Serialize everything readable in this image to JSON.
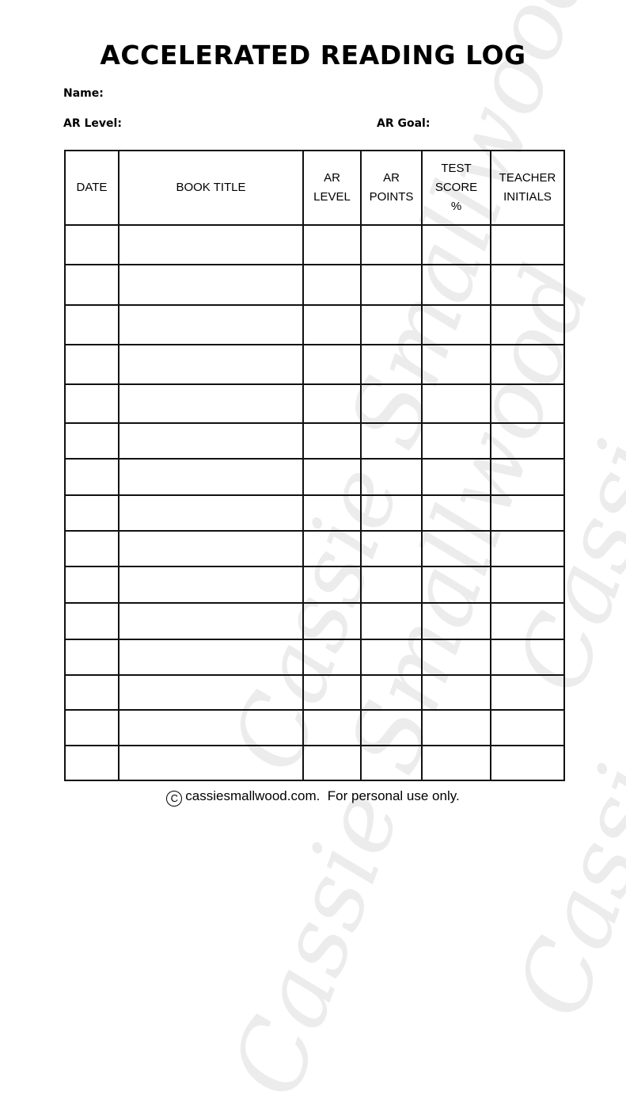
{
  "title": "ACCELERATED READING LOG",
  "fields": {
    "name": "Name:",
    "ar_level": "AR Level:",
    "ar_goal": "AR Goal:"
  },
  "table": {
    "headers": [
      "DATE",
      "BOOK TITLE",
      "AR\nLEVEL",
      "AR\nPOINTS",
      "TEST\nSCORE\n%",
      "TEACHER\nINITIALS"
    ],
    "row_count": 15
  },
  "watermark": "Cassie Smallwood",
  "footer": {
    "copyright_icon": "copyright-icon",
    "text": "cassiesmallwood.com.  For personal use only."
  }
}
